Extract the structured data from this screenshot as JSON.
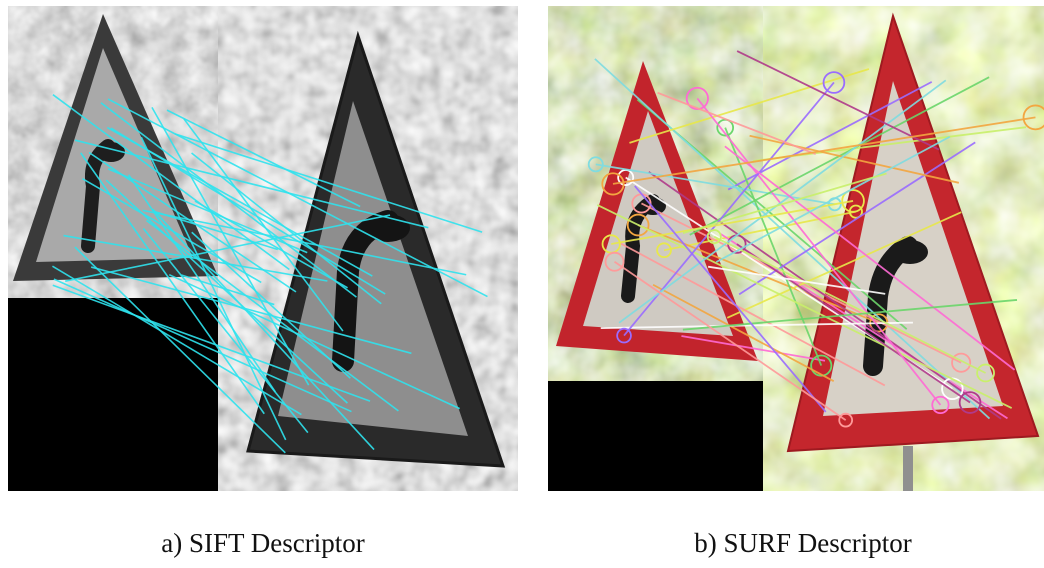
{
  "figures": [
    {
      "caption": "a) SIFT Descriptor",
      "match_color": "#2fe3ee"
    },
    {
      "caption": "b) SURF Descriptor",
      "match_colors": [
        "#e8e84a",
        "#ff6ad5",
        "#6bd66b",
        "#f3a640",
        "#9a6cff",
        "#7fdce0",
        "#ff9a9a",
        "#c9f06b",
        "#b03a8a",
        "#ffffff"
      ]
    }
  ]
}
